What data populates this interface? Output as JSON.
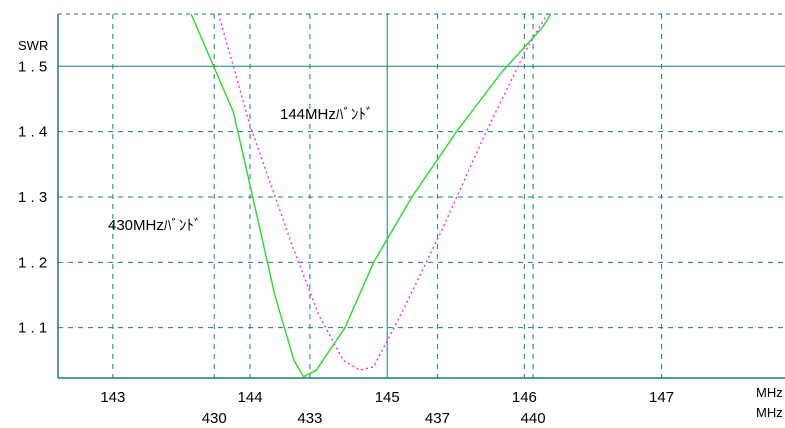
{
  "chart_data": {
    "type": "line",
    "y_axis": {
      "label": "SWR",
      "range": [
        1.023,
        1.58
      ],
      "ticks": [
        {
          "value": 1.1,
          "text": "1.1"
        },
        {
          "value": 1.2,
          "text": "1.2"
        },
        {
          "value": 1.3,
          "text": "1.3"
        },
        {
          "value": 1.4,
          "text": "1.4"
        },
        {
          "value": 1.5,
          "text": "1.5"
        }
      ]
    },
    "x_axis_144": {
      "unit": "MHz",
      "range": [
        142.6,
        147.9
      ],
      "ticks": [
        {
          "value": 143,
          "text": "143"
        },
        {
          "value": 144,
          "text": "144"
        },
        {
          "value": 145,
          "text": "145"
        },
        {
          "value": 146,
          "text": "146"
        },
        {
          "value": 147,
          "text": "147"
        }
      ]
    },
    "x_axis_430": {
      "unit": "MHz",
      "range": [
        425.1,
        447.9
      ],
      "ticks": [
        {
          "value": 430,
          "text": "430"
        },
        {
          "value": 433,
          "text": "433"
        },
        {
          "value": 437,
          "text": "437"
        },
        {
          "value": 440,
          "text": "440"
        }
      ]
    },
    "grid": true,
    "series": [
      {
        "name": "144MHzﾊﾞﾝﾄﾞ",
        "axis": "x_axis_144",
        "color": "#ff22ff",
        "style": "dotted",
        "points": [
          [
            143.73,
            1.61
          ],
          [
            144.0,
            1.41
          ],
          [
            144.3,
            1.23
          ],
          [
            144.5,
            1.12
          ],
          [
            144.68,
            1.05
          ],
          [
            144.8,
            1.035
          ],
          [
            144.9,
            1.04
          ],
          [
            145.1,
            1.12
          ],
          [
            145.4,
            1.25
          ],
          [
            145.7,
            1.39
          ],
          [
            146.0,
            1.52
          ],
          [
            146.25,
            1.61
          ]
        ]
      },
      {
        "name": "430MHzﾊﾞﾝﾄﾞ",
        "axis": "x_axis_430",
        "color": "#22dd22",
        "style": "solid-dashed",
        "points": [
          [
            429.1,
            1.6
          ],
          [
            430.6,
            1.43
          ],
          [
            431.3,
            1.28
          ],
          [
            431.9,
            1.15
          ],
          [
            432.5,
            1.05
          ],
          [
            432.8,
            1.025
          ],
          [
            433.2,
            1.035
          ],
          [
            434.1,
            1.1
          ],
          [
            435.0,
            1.2
          ],
          [
            436.2,
            1.3
          ],
          [
            437.6,
            1.4
          ],
          [
            439.0,
            1.49
          ],
          [
            440.3,
            1.56
          ],
          [
            440.8,
            1.6
          ]
        ]
      }
    ],
    "annotations": [
      {
        "text": "144MHzﾊﾞﾝﾄﾞ",
        "series": "144MHzﾊﾞﾝﾄﾞ"
      },
      {
        "text": "430MHzﾊﾞﾝﾄﾞ",
        "series": "430MHzﾊﾞﾝﾄﾞ"
      }
    ],
    "colors": {
      "grid": "#1a7f7f",
      "axis": "#1a7f7f"
    }
  }
}
